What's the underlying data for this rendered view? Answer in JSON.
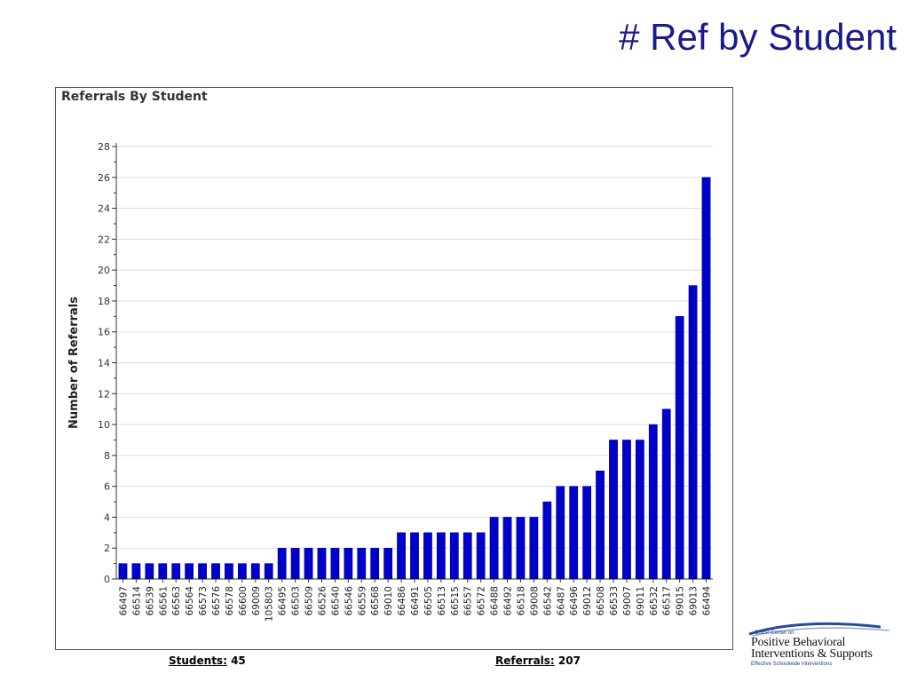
{
  "slide": {
    "title": "# Ref by Student"
  },
  "summary": {
    "students_label": "Students:",
    "students_value": "45",
    "referrals_label": "Referrals:",
    "referrals_value": "207"
  },
  "logo": {
    "small_text": "OSEP Center on",
    "line1": "Positive Behavioral",
    "line2": "Interventions & Supports",
    "tagline": "Effective Schoolwide Interventions"
  },
  "colors": {
    "title": "#1a1a8c",
    "bar": "#0000cc",
    "grid": "#dddddd"
  },
  "chart_data": {
    "type": "bar",
    "title": "Referrals By Student",
    "xlabel": "",
    "ylabel": "Number of Referrals",
    "ylim": [
      0,
      28
    ],
    "yticks": [
      0,
      2,
      4,
      6,
      8,
      10,
      12,
      14,
      16,
      18,
      20,
      22,
      24,
      26,
      28
    ],
    "grid": true,
    "legend": "none",
    "categories": [
      "66497",
      "66514",
      "66539",
      "66561",
      "66563",
      "66564",
      "66573",
      "66576",
      "66578",
      "66600",
      "69009",
      "105803",
      "66495",
      "66503",
      "66509",
      "66526",
      "66540",
      "66546",
      "66559",
      "66568",
      "69010",
      "66486",
      "66491",
      "66505",
      "66513",
      "66515",
      "66557",
      "66572",
      "66488",
      "66492",
      "66518",
      "69008",
      "66542",
      "66487",
      "66496",
      "69012",
      "66508",
      "66533",
      "69007",
      "69011",
      "66532",
      "66517",
      "69015",
      "69013",
      "66494"
    ],
    "values": [
      1,
      1,
      1,
      1,
      1,
      1,
      1,
      1,
      1,
      1,
      1,
      1,
      2,
      2,
      2,
      2,
      2,
      2,
      2,
      2,
      2,
      3,
      3,
      3,
      3,
      3,
      3,
      3,
      4,
      4,
      4,
      4,
      5,
      6,
      6,
      6,
      7,
      9,
      9,
      9,
      10,
      11,
      17,
      19,
      26
    ]
  }
}
